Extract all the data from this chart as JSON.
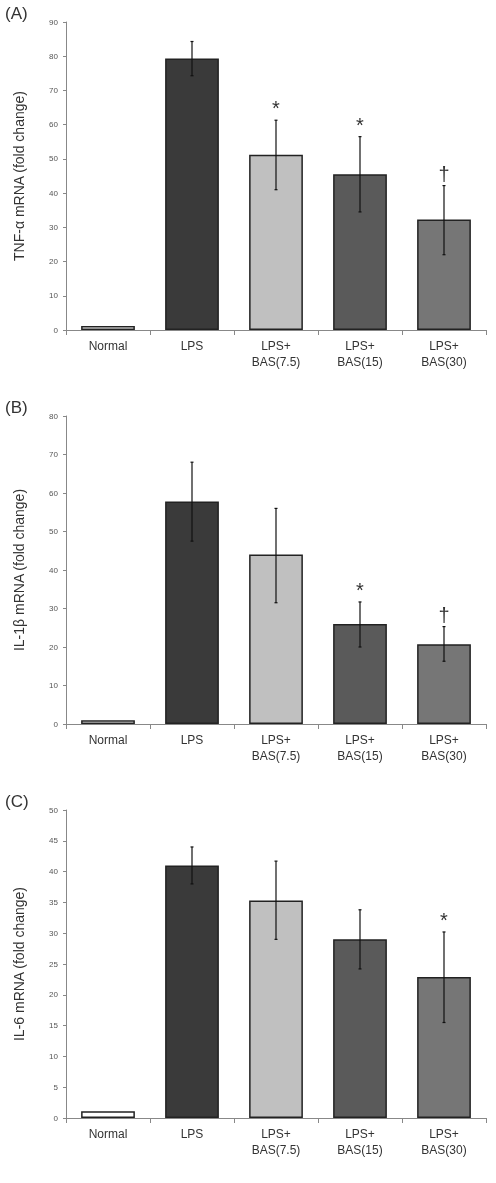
{
  "chart_data": [
    {
      "type": "bar",
      "title": "(A)",
      "ylabel": "TNF-α mRNA (fold change)",
      "categories": [
        "Normal",
        "LPS",
        "LPS+\nBAS(7.5)",
        "LPS+\nBAS(15)",
        "LPS+\nBAS(30)"
      ],
      "values": [
        1.2,
        79.3,
        51.2,
        45.5,
        32.3
      ],
      "colors": [
        "#ffffff",
        "#3a3a3a",
        "#c0c0c0",
        "#5a5a5a",
        "#767676"
      ],
      "errors": [
        null,
        [
          74.3,
          84.3
        ],
        [
          41,
          61.3
        ],
        [
          34.5,
          56.5
        ],
        [
          22,
          42.2
        ]
      ],
      "ylim": [
        0,
        90
      ],
      "yticks": [
        0,
        10,
        20,
        30,
        40,
        50,
        60,
        70,
        80,
        90
      ],
      "grid": false,
      "annotations": [
        {
          "text": "*",
          "x": "LPS+\nBAS(7.5)",
          "y": 61.3
        },
        {
          "text": "*",
          "x": "LPS+\nBAS(15)",
          "y": 56.5
        },
        {
          "text": "†",
          "x": "LPS+\nBAS(30)",
          "y": 42.2
        }
      ]
    },
    {
      "type": "bar",
      "title": "(B)",
      "ylabel": "IL-1β mRNA (fold change)",
      "categories": [
        "Normal",
        "LPS",
        "LPS+\nBAS(7.5)",
        "LPS+\nBAS(15)",
        "LPS+\nBAS(30)"
      ],
      "values": [
        1,
        57.8,
        44,
        26,
        20.7
      ],
      "colors": [
        "#ffffff",
        "#3a3a3a",
        "#c0c0c0",
        "#5a5a5a",
        "#767676"
      ],
      "errors": [
        null,
        [
          47.5,
          68
        ],
        [
          31.5,
          56
        ],
        [
          20,
          31.7
        ],
        [
          16.3,
          25.3
        ]
      ],
      "ylim": [
        0,
        80
      ],
      "yticks": [
        0,
        10,
        20,
        30,
        40,
        50,
        60,
        70,
        80
      ],
      "grid": false,
      "annotations": [
        {
          "text": "*",
          "x": "LPS+\nBAS(15)",
          "y": 31.7
        },
        {
          "text": "†",
          "x": "LPS+\nBAS(30)",
          "y": 25.3
        }
      ]
    },
    {
      "type": "bar",
      "title": "(C)",
      "ylabel": "IL-6 mRNA (fold change)",
      "categories": [
        "Normal",
        "LPS",
        "LPS+\nBAS(7.5)",
        "LPS+\nBAS(15)",
        "LPS+\nBAS(30)"
      ],
      "values": [
        1.1,
        41,
        35.3,
        29,
        22.9
      ],
      "colors": [
        "#ffffff",
        "#3a3a3a",
        "#c0c0c0",
        "#5a5a5a",
        "#767676"
      ],
      "errors": [
        null,
        [
          38,
          44
        ],
        [
          29,
          41.7
        ],
        [
          24.2,
          33.8
        ],
        [
          15.5,
          30.2
        ]
      ],
      "ylim": [
        0,
        50
      ],
      "yticks": [
        0,
        5,
        10,
        15,
        20,
        25,
        30,
        35,
        40,
        45,
        50
      ],
      "grid": false,
      "annotations": [
        {
          "text": "*",
          "x": "LPS+\nBAS(30)",
          "y": 30.2
        }
      ]
    }
  ]
}
